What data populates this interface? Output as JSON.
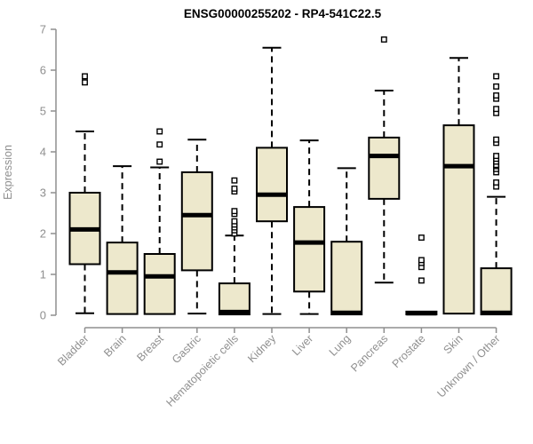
{
  "colors": {
    "box_fill": "#EDE8CC",
    "box_stroke": "#000000",
    "median": "#000000",
    "axis": "#8f8f8f",
    "label": "#8f8f8f",
    "title": "#000000",
    "background": "#FFFFFF"
  },
  "chart_data": {
    "type": "boxplot",
    "title": "ENSG00000255202 - RP4-541C22.5",
    "ylabel": "Expression",
    "xlabel": "",
    "ylim": [
      0,
      7
    ],
    "y_ticks": [
      0,
      1,
      2,
      3,
      4,
      5,
      6,
      7
    ],
    "grid": false,
    "legend": false,
    "categories": [
      "Bladder",
      "Brain",
      "Breast",
      "Gastric",
      "Hematopoietic cells",
      "Kidney",
      "Liver",
      "Lung",
      "Pancreas",
      "Prostate",
      "Skin",
      "Unknown / Other"
    ],
    "series": [
      {
        "category": "Bladder",
        "whisker_low": 0.05,
        "q1": 1.25,
        "median": 2.1,
        "q3": 3.0,
        "whisker_high": 4.5,
        "outliers": [
          5.7,
          5.85
        ]
      },
      {
        "category": "Brain",
        "whisker_low": 0.03,
        "q1": 0.03,
        "median": 1.05,
        "q3": 1.78,
        "whisker_high": 3.65,
        "outliers": []
      },
      {
        "category": "Breast",
        "whisker_low": 0.03,
        "q1": 0.03,
        "median": 0.95,
        "q3": 1.5,
        "whisker_high": 3.62,
        "outliers": [
          3.76,
          4.18,
          4.5
        ]
      },
      {
        "category": "Gastric",
        "whisker_low": 0.04,
        "q1": 1.1,
        "median": 2.45,
        "q3": 3.5,
        "whisker_high": 4.3,
        "outliers": []
      },
      {
        "category": "Hematopoietic cells",
        "whisker_low": 0.02,
        "q1": 0.02,
        "median": 0.08,
        "q3": 0.78,
        "whisker_high": 1.95,
        "outliers": [
          2.0,
          2.08,
          2.15,
          2.22,
          2.3,
          2.48,
          2.55,
          3.03,
          3.1,
          3.3
        ]
      },
      {
        "category": "Kidney",
        "whisker_low": 0.03,
        "q1": 2.3,
        "median": 2.95,
        "q3": 4.1,
        "whisker_high": 6.55,
        "outliers": []
      },
      {
        "category": "Liver",
        "whisker_low": 0.03,
        "q1": 0.58,
        "median": 1.78,
        "q3": 2.65,
        "whisker_high": 4.28,
        "outliers": []
      },
      {
        "category": "Lung",
        "whisker_low": 0.02,
        "q1": 0.02,
        "median": 0.06,
        "q3": 1.8,
        "whisker_high": 3.6,
        "outliers": []
      },
      {
        "category": "Pancreas",
        "whisker_low": 0.8,
        "q1": 2.85,
        "median": 3.9,
        "q3": 4.35,
        "whisker_high": 5.5,
        "outliers": [
          6.75
        ]
      },
      {
        "category": "Prostate",
        "whisker_low": 0.02,
        "q1": 0.02,
        "median": 0.05,
        "q3": 0.09,
        "whisker_high": 0.09,
        "outliers": [
          0.85,
          1.18,
          1.28,
          1.35,
          1.9
        ]
      },
      {
        "category": "Skin",
        "whisker_low": 0.04,
        "q1": 0.04,
        "median": 3.65,
        "q3": 4.65,
        "whisker_high": 6.3,
        "outliers": []
      },
      {
        "category": "Unknown / Other",
        "whisker_low": 0.02,
        "q1": 0.02,
        "median": 0.06,
        "q3": 1.15,
        "whisker_high": 2.9,
        "outliers": [
          3.15,
          3.25,
          3.5,
          3.58,
          3.65,
          3.68,
          3.76,
          3.83,
          3.9,
          4.22,
          4.3,
          4.95,
          5.05,
          5.3,
          5.38,
          5.6,
          5.85
        ]
      }
    ]
  }
}
